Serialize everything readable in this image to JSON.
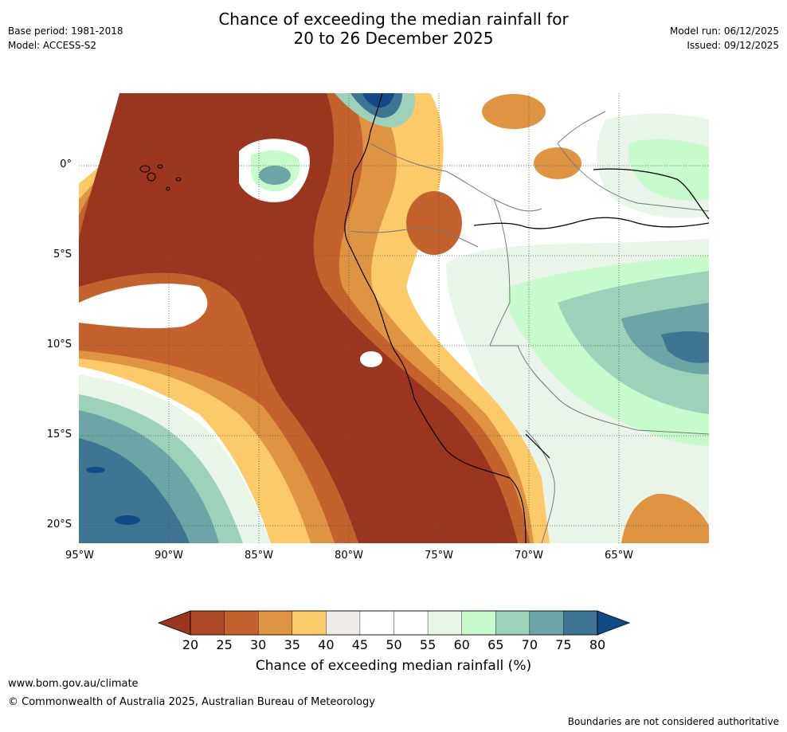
{
  "header": {
    "title_line1": "Chance of exceeding the median rainfall for",
    "title_line2": "20 to 26 December 2025",
    "base_period": "Base period: 1981-2018",
    "model": "Model: ACCESS-S2",
    "model_run": "Model run: 06/12/2025",
    "issued": "Issued: 09/12/2025"
  },
  "map": {
    "lat_labels": [
      "0°",
      "5°S",
      "10°S",
      "15°S",
      "20°S"
    ],
    "lon_labels": [
      "95°W",
      "90°W",
      "85°W",
      "80°W",
      "75°W",
      "70°W",
      "65°W"
    ],
    "region": "Eastern Pacific / western South America (Ecuador, Peru, Bolivia, Brazil)",
    "pattern": "below-median (red/orange) along the Pacific coast and over the ocean; above-median (green/teal) over the Amazon basin and far south-west Pacific",
    "colors": {
      "c20_25": "#9a3520",
      "c25_30": "#c4622d",
      "c30_35": "#df9441",
      "c35_40": "#fdca6a",
      "c40_45": "#efebe6",
      "c45_55": "#ffffff",
      "c55_60": "#eaf5ea",
      "c60_65": "#c8fbcb",
      "c65_70": "#9dd1b9",
      "c70_75": "#6da4a5",
      "c75_80": "#3f7593",
      "c80": "#114a87"
    }
  },
  "colorbar": {
    "title": "Chance of exceeding median rainfall (%)",
    "ticks": [
      "20",
      "25",
      "30",
      "35",
      "40",
      "45",
      "50",
      "55",
      "60",
      "65",
      "70",
      "75",
      "80"
    ],
    "segment_colors": [
      "#9a3520",
      "#ae4826",
      "#c4622d",
      "#df9441",
      "#fdca6a",
      "#efebe6",
      "#ffffff",
      "#ffffff",
      "#eaf5ea",
      "#c8fbcb",
      "#9dd1b9",
      "#6da4a5",
      "#3f7593",
      "#114a87"
    ]
  },
  "footer": {
    "url": "www.bom.gov.au/climate",
    "copyright": "© Commonwealth of Australia 2025, Australian Bureau of Meteorology",
    "note": "Boundaries are not considered authoritative"
  }
}
